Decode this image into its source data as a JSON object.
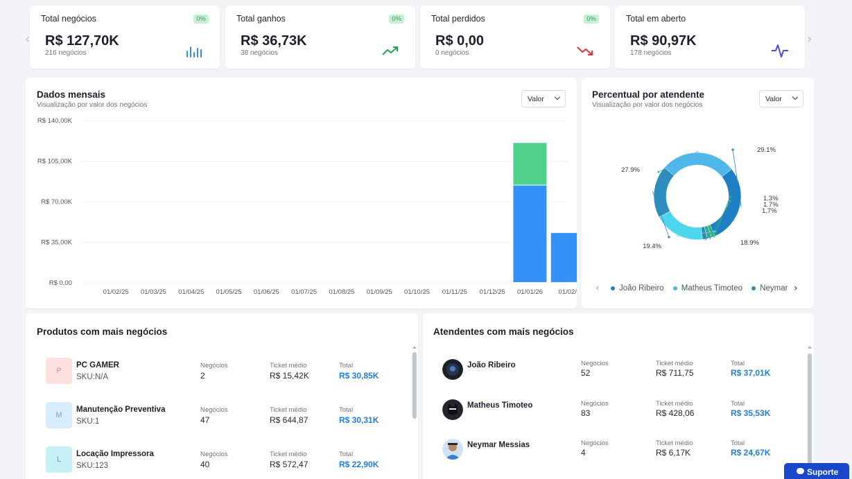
{
  "kpis": [
    {
      "title": "Total negócios",
      "badge": "0%",
      "value": "R$ 127,70K",
      "sub": "216 negócios",
      "icon": "bar-chart-icon",
      "icon_color": "#3b8fd9"
    },
    {
      "title": "Total ganhos",
      "badge": "0%",
      "value": "R$ 36,73K",
      "sub": "38 negócios",
      "icon": "trending-up-icon",
      "icon_color": "#22a350"
    },
    {
      "title": "Total perdidos",
      "badge": "0%",
      "value": "R$ 0,00",
      "sub": "0 negócios",
      "icon": "trending-down-icon",
      "icon_color": "#d93535"
    },
    {
      "title": "Total em aberto",
      "value": "R$ 90,97K",
      "sub": "178 negócios",
      "icon": "activity-icon",
      "icon_color": "#4b4fe0"
    }
  ],
  "monthly": {
    "title": "Dados mensais",
    "subtitle": "Visualização por valor dos negócios",
    "select_value": "Valor"
  },
  "attendant_pct": {
    "title": "Percentual por atendente",
    "subtitle": "Visualização por valor dos negócios",
    "select_value": "Valor",
    "legend": [
      {
        "name": "João Ribeiro",
        "color": "#1f7fc4"
      },
      {
        "name": "Matheus Timoteo",
        "color": "#4fb7ea"
      },
      {
        "name": "Neymar",
        "color": "#2a8ab0"
      }
    ]
  },
  "chart_data": [
    {
      "type": "bar",
      "stacked": true,
      "categories": [
        "01/02/25",
        "01/03/25",
        "01/04/25",
        "01/05/25",
        "01/06/25",
        "01/07/25",
        "01/08/25",
        "01/09/25",
        "01/10/25",
        "01/11/25",
        "01/12/25",
        "01/01/26",
        "01/02/"
      ],
      "series": [
        {
          "color": "#3391f7",
          "values": [
            0,
            0,
            0,
            0,
            0,
            0,
            0,
            0,
            0,
            0,
            0,
            84000,
            43000
          ]
        },
        {
          "color": "#4fd18b",
          "values": [
            0,
            0,
            0,
            0,
            0,
            0,
            0,
            0,
            0,
            0,
            0,
            36730,
            0
          ]
        }
      ],
      "y_ticks": [
        "R$ 0,00",
        "R$ 35,00K",
        "R$ 70,00K",
        "R$ 105,00K",
        "R$ 140,00K"
      ],
      "ylim": [
        0,
        140000
      ],
      "grid": true
    },
    {
      "type": "pie",
      "donut": true,
      "values": [
        29.1,
        1.3,
        1.7,
        1.7,
        18.9,
        19.4,
        27.9
      ],
      "labels": [
        "29.1%",
        "1.3%",
        "1.7%",
        "1.7%",
        "18.9%",
        "19.4%",
        "27.9%"
      ],
      "colors": [
        "#1f7fc4",
        "#2fb36b",
        "#3aa99a",
        "#2a8ab0",
        "#4fd6ef",
        "#2f8dbd",
        "#4fb7ea"
      ]
    }
  ],
  "products": {
    "title": "Produtos com mais negócios",
    "metric_labels": {
      "deals": "Negócios",
      "ticket": "Ticket médio",
      "total": "Total"
    },
    "items": [
      {
        "initial": "P",
        "name": "PC GAMER",
        "sku": "SKU:N/A",
        "deals": "2",
        "ticket": "R$ 15,42K",
        "total": "R$ 30,85K",
        "thumb_bg": "#fde1e1",
        "thumb_fg": "#e88c8c"
      },
      {
        "initial": "M",
        "name": "Manutenção Preventiva",
        "sku": "SKU:1",
        "deals": "47",
        "ticket": "R$ 644,87",
        "total": "R$ 30,31K",
        "thumb_bg": "#d8ecfb",
        "thumb_fg": "#6aa9db"
      },
      {
        "initial": "L",
        "name": "Locação Impressora",
        "sku": "SKU:123",
        "deals": "40",
        "ticket": "R$ 572,47",
        "total": "R$ 22,90K",
        "thumb_bg": "#c7f1f7",
        "thumb_fg": "#3fa6b8"
      }
    ]
  },
  "attendants": {
    "title": "Atendentes com mais negócios",
    "metric_labels": {
      "deals": "Negócios",
      "ticket": "Ticket médio",
      "total": "Total"
    },
    "items": [
      {
        "name": "João Ribeiro",
        "deals": "52",
        "ticket": "R$ 711,75",
        "total": "R$ 37,01K"
      },
      {
        "name": "Matheus Timoteo",
        "deals": "83",
        "ticket": "R$ 428,06",
        "total": "R$ 35,53K"
      },
      {
        "name": "Neymar Messias",
        "deals": "4",
        "ticket": "R$ 6,17K",
        "total": "R$ 24,67K"
      }
    ]
  },
  "support": {
    "label": "Suporte"
  }
}
